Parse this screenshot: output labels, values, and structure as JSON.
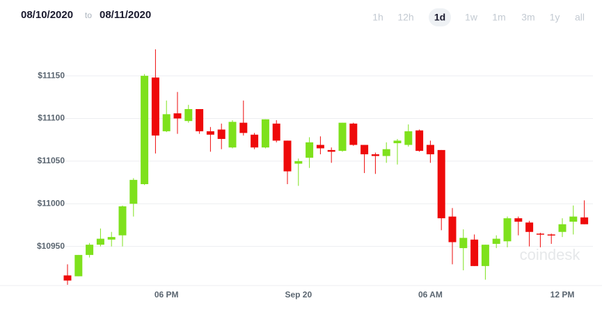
{
  "header": {
    "from": "08/10/2020",
    "separator": "to",
    "to": "08/11/2020",
    "ranges": [
      "1h",
      "12h",
      "1d",
      "1w",
      "1m",
      "3m",
      "1y",
      "all"
    ],
    "active_range": "1d"
  },
  "chart_data": {
    "type": "candlestick",
    "watermark": "coindesk",
    "categories": [
      null,
      null,
      null,
      null,
      null,
      null,
      null,
      null,
      null,
      "06 PM",
      null,
      null,
      null,
      null,
      null,
      null,
      null,
      null,
      null,
      null,
      null,
      "Sep 20",
      null,
      null,
      null,
      null,
      null,
      null,
      null,
      null,
      null,
      null,
      null,
      "06 AM",
      null,
      null,
      null,
      null,
      null,
      null,
      null,
      null,
      null,
      null,
      null,
      "12 PM",
      null,
      null
    ],
    "open": [
      10916,
      10915,
      10940,
      10952,
      10958,
      10963,
      11000,
      11023,
      11148,
      11085,
      11106,
      11097,
      11111,
      11085,
      11087,
      11066,
      11095,
      11081,
      11066,
      11094,
      11074,
      11047,
      11054,
      11069,
      11063,
      11062,
      11094,
      11069,
      11058,
      11056,
      11071,
      11069,
      11086,
      11069,
      11063,
      10985,
      10948,
      10958,
      10927,
      10953,
      10956,
      10983,
      10978,
      10965,
      10964,
      10967,
      10979,
      10984
    ],
    "high": [
      10929,
      10940,
      10954,
      10971,
      10967,
      10998,
      11030,
      11152,
      11181,
      11121,
      11131,
      11116,
      11111,
      11090,
      11094,
      11098,
      11121,
      11083,
      11099,
      11098,
      11074,
      11053,
      11078,
      11079,
      11066,
      11095,
      11095,
      11069,
      11060,
      11072,
      11076,
      11093,
      11087,
      11074,
      11063,
      10995,
      10970,
      10964,
      10952,
      10963,
      10985,
      10985,
      10980,
      10966,
      10965,
      10983,
      10998,
      11004
    ],
    "low": [
      10905,
      10915,
      10937,
      10950,
      10950,
      10950,
      10985,
      11022,
      11059,
      11084,
      11082,
      11095,
      11082,
      11061,
      11064,
      11065,
      11080,
      11064,
      11065,
      11072,
      11023,
      11021,
      11042,
      11058,
      11048,
      11061,
      11068,
      11036,
      11035,
      11048,
      11046,
      11067,
      11061,
      11048,
      10969,
      10929,
      10922,
      10927,
      10911,
      10948,
      10949,
      10963,
      10950,
      10949,
      10953,
      10961,
      10964,
      10976
    ],
    "close": [
      10910,
      10940,
      10952,
      10959,
      10961,
      10997,
      11028,
      11150,
      11080,
      11105,
      11100,
      11111,
      11085,
      11081,
      11076,
      11096,
      11083,
      11066,
      11099,
      11074,
      11038,
      11050,
      11072,
      11065,
      11061,
      11095,
      11069,
      11058,
      11056,
      11064,
      11074,
      11085,
      11062,
      11058,
      10983,
      10955,
      10960,
      10927,
      10952,
      10959,
      10983,
      10979,
      10967,
      10964,
      10963,
      10976,
      10985,
      10976
    ],
    "up_color": "#7ee11c",
    "down_color": "#ee0a0a",
    "ylim": [
      10900,
      11190
    ],
    "yticks": [
      {
        "value": 10950,
        "label": "$10950"
      },
      {
        "value": 11000,
        "label": "$11000"
      },
      {
        "value": 11050,
        "label": "$11050"
      },
      {
        "value": 11100,
        "label": "$11100"
      },
      {
        "value": 11150,
        "label": "$11150"
      }
    ],
    "grid": true
  }
}
